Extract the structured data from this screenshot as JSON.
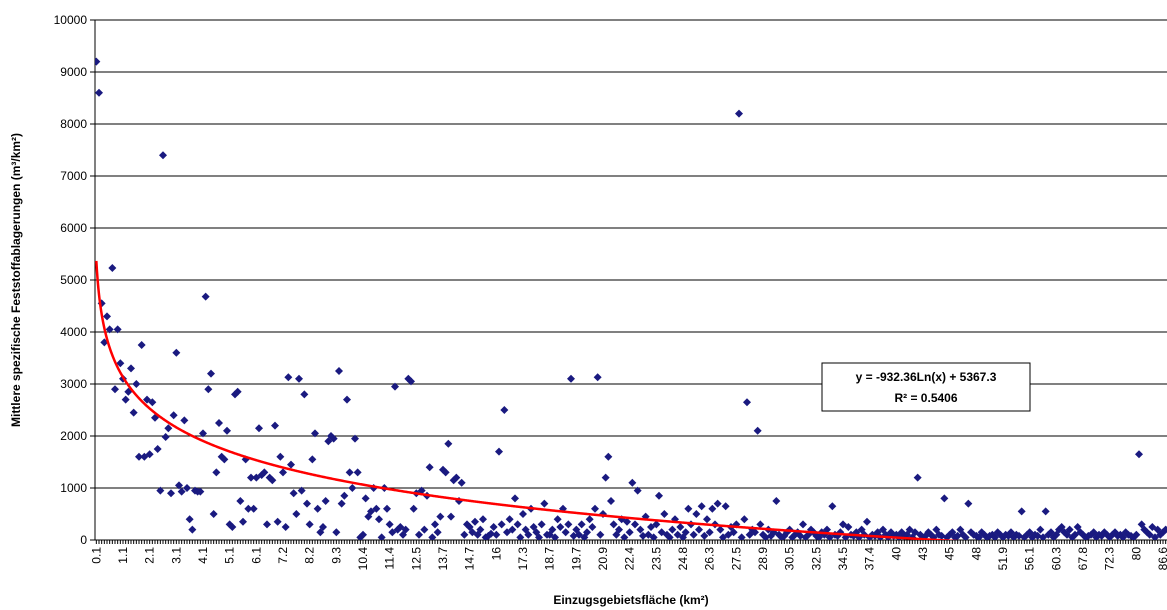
{
  "chart_data": {
    "type": "scatter",
    "x_label": "Einzugsgebietsfläche (km²)",
    "y_label": "Mittlere spezifische Feststoffablagerungen (m³/km²)",
    "ylim": [
      0,
      10000
    ],
    "yticks": [
      0,
      1000,
      2000,
      3000,
      4000,
      5000,
      6000,
      7000,
      8000,
      9000,
      10000
    ],
    "grid": true,
    "color": "#1a1a80",
    "trendline": {
      "color": "#ff0000",
      "slope": -932.36,
      "intercept": 5367.3,
      "equation": "y = -932.36Ln(x) + 5367.3",
      "r_squared": "R² = 0.5406"
    },
    "categories": [
      "0.1",
      null,
      null,
      null,
      null,
      null,
      null,
      null,
      null,
      null,
      "1.1",
      null,
      null,
      null,
      null,
      null,
      null,
      null,
      null,
      null,
      "2.1",
      null,
      null,
      null,
      null,
      null,
      null,
      null,
      null,
      null,
      "3.1",
      null,
      null,
      null,
      null,
      null,
      null,
      null,
      null,
      null,
      "4.1",
      null,
      null,
      null,
      null,
      null,
      null,
      null,
      null,
      null,
      "5.1",
      null,
      null,
      null,
      null,
      null,
      null,
      null,
      null,
      null,
      "6.1",
      null,
      null,
      null,
      null,
      null,
      null,
      null,
      null,
      null,
      "7.2",
      null,
      null,
      null,
      null,
      null,
      null,
      null,
      null,
      null,
      "8.2",
      null,
      null,
      null,
      null,
      null,
      null,
      null,
      null,
      null,
      "9.3",
      null,
      null,
      null,
      null,
      null,
      null,
      null,
      null,
      null,
      "10.4",
      null,
      null,
      null,
      null,
      null,
      null,
      null,
      null,
      null,
      "11.4",
      null,
      null,
      null,
      null,
      null,
      null,
      null,
      null,
      null,
      "12.5",
      null,
      null,
      null,
      null,
      null,
      null,
      null,
      null,
      null,
      "13.7",
      null,
      null,
      null,
      null,
      null,
      null,
      null,
      null,
      null,
      "14.7",
      null,
      null,
      null,
      null,
      null,
      null,
      null,
      null,
      null,
      "16",
      null,
      null,
      null,
      null,
      null,
      null,
      null,
      null,
      null,
      "17.3",
      null,
      null,
      null,
      null,
      null,
      null,
      null,
      null,
      null,
      "18.7",
      null,
      null,
      null,
      null,
      null,
      null,
      null,
      null,
      null,
      "19.7",
      null,
      null,
      null,
      null,
      null,
      null,
      null,
      null,
      null,
      "20.9",
      null,
      null,
      null,
      null,
      null,
      null,
      null,
      null,
      null,
      "22.4",
      null,
      null,
      null,
      null,
      null,
      null,
      null,
      null,
      null,
      "23.5",
      null,
      null,
      null,
      null,
      null,
      null,
      null,
      null,
      null,
      "24.8",
      null,
      null,
      null,
      null,
      null,
      null,
      null,
      null,
      null,
      "26.3",
      null,
      null,
      null,
      null,
      null,
      null,
      null,
      null,
      null,
      "27.5",
      null,
      null,
      null,
      null,
      null,
      null,
      null,
      null,
      null,
      "28.9",
      null,
      null,
      null,
      null,
      null,
      null,
      null,
      null,
      null,
      "30.5",
      null,
      null,
      null,
      null,
      null,
      null,
      null,
      null,
      null,
      "32.5",
      null,
      null,
      null,
      null,
      null,
      null,
      null,
      null,
      null,
      "34.5",
      null,
      null,
      null,
      null,
      null,
      null,
      null,
      null,
      null,
      "37.4",
      null,
      null,
      null,
      null,
      null,
      null,
      null,
      null,
      null,
      "40",
      null,
      null,
      null,
      null,
      null,
      null,
      null,
      null,
      null,
      "43",
      null,
      null,
      null,
      null,
      null,
      null,
      null,
      null,
      null,
      "45",
      null,
      null,
      null,
      null,
      null,
      null,
      null,
      null,
      null,
      "48",
      null,
      null,
      null,
      null,
      null,
      null,
      null,
      null,
      null,
      "51.9",
      null,
      null,
      null,
      null,
      null,
      null,
      null,
      null,
      null,
      "56.1",
      null,
      null,
      null,
      null,
      null,
      null,
      null,
      null,
      null,
      "60.3",
      null,
      null,
      null,
      null,
      null,
      null,
      null,
      null,
      null,
      "67.8",
      null,
      null,
      null,
      null,
      null,
      null,
      null,
      null,
      null,
      "72.3",
      null,
      null,
      null,
      null,
      null,
      null,
      null,
      null,
      null,
      "80",
      null,
      null,
      null,
      null,
      null,
      null,
      null,
      null,
      null,
      "86.6",
      null
    ],
    "values": [
      9200,
      8600,
      4550,
      3800,
      4300,
      4050,
      5230,
      2900,
      4050,
      3400,
      3100,
      2700,
      2850,
      3300,
      2450,
      3000,
      1600,
      3750,
      1600,
      2700,
      1650,
      2650,
      2350,
      1750,
      950,
      7400,
      1980,
      2150,
      900,
      2400,
      3600,
      1050,
      930,
      2300,
      1000,
      400,
      200,
      950,
      930,
      930,
      2050,
      4680,
      2900,
      3200,
      500,
      1300,
      2250,
      1600,
      1550,
      2100,
      300,
      250,
      2800,
      2850,
      750,
      350,
      1550,
      600,
      1200,
      600,
      1200,
      2150,
      1250,
      1300,
      300,
      1200,
      1150,
      2200,
      350,
      1600,
      1300,
      250,
      3130,
      1450,
      900,
      500,
      3100,
      950,
      2800,
      700,
      300,
      1550,
      2050,
      600,
      150,
      250,
      750,
      1900,
      2000,
      1950,
      150,
      3250,
      700,
      850,
      2700,
      1300,
      1000,
      1950,
      1300,
      50,
      100,
      800,
      450,
      550,
      1000,
      600,
      400,
      50,
      1000,
      600,
      300,
      150,
      2950,
      200,
      250,
      100,
      200,
      3100,
      3050,
      600,
      900,
      100,
      950,
      200,
      850,
      1400,
      50,
      300,
      150,
      450,
      1350,
      1300,
      1850,
      450,
      1150,
      1200,
      750,
      1100,
      100,
      300,
      250,
      150,
      350,
      100,
      200,
      400,
      50,
      80,
      120,
      250,
      100,
      1700,
      300,
      2500,
      150,
      400,
      200,
      800,
      300,
      50,
      500,
      200,
      100,
      600,
      250,
      150,
      50,
      300,
      700,
      100,
      100,
      200,
      50,
      400,
      250,
      600,
      150,
      300,
      3100,
      80,
      200,
      100,
      300,
      50,
      150,
      400,
      250,
      600,
      3130,
      100,
      500,
      1200,
      1600,
      750,
      300,
      100,
      200,
      400,
      50,
      350,
      150,
      1100,
      300,
      950,
      200,
      80,
      450,
      100,
      250,
      50,
      300,
      850,
      150,
      500,
      100,
      50,
      200,
      400,
      100,
      250,
      50,
      150,
      600,
      300,
      100,
      500,
      200,
      650,
      80,
      400,
      150,
      600,
      300,
      700,
      200,
      50,
      650,
      100,
      250,
      150,
      300,
      8200,
      50,
      400,
      2650,
      100,
      200,
      150,
      2100,
      300,
      100,
      50,
      200,
      80,
      150,
      750,
      100,
      50,
      80,
      150,
      200,
      50,
      100,
      150,
      80,
      300,
      50,
      100,
      200,
      150,
      80,
      50,
      150,
      100,
      200,
      50,
      650,
      100,
      80,
      150,
      300,
      50,
      250,
      100,
      80,
      150,
      50,
      200,
      100,
      350,
      50,
      100,
      80,
      150,
      50,
      200,
      100,
      50,
      150,
      80,
      100,
      50,
      150,
      80,
      100,
      200,
      50,
      150,
      1200,
      100,
      50,
      80,
      150,
      100,
      50,
      200,
      100,
      80,
      800,
      50,
      100,
      150,
      50,
      80,
      200,
      100,
      50,
      700,
      150,
      100,
      80,
      50,
      150,
      100,
      50,
      80,
      100,
      50,
      150,
      100,
      50,
      100,
      80,
      150,
      50,
      100,
      80,
      550,
      50,
      100,
      150,
      50,
      100,
      80,
      200,
      50,
      550,
      100,
      150,
      50,
      100,
      200,
      250,
      150,
      100,
      200,
      50,
      100,
      250,
      150,
      100,
      50,
      80,
      100,
      150,
      50,
      100,
      80,
      150,
      100,
      50,
      100,
      150,
      80,
      100,
      50,
      150,
      100,
      80,
      50,
      100,
      1650,
      300,
      200,
      150,
      100,
      250,
      50,
      200,
      100,
      150,
      200
    ]
  }
}
